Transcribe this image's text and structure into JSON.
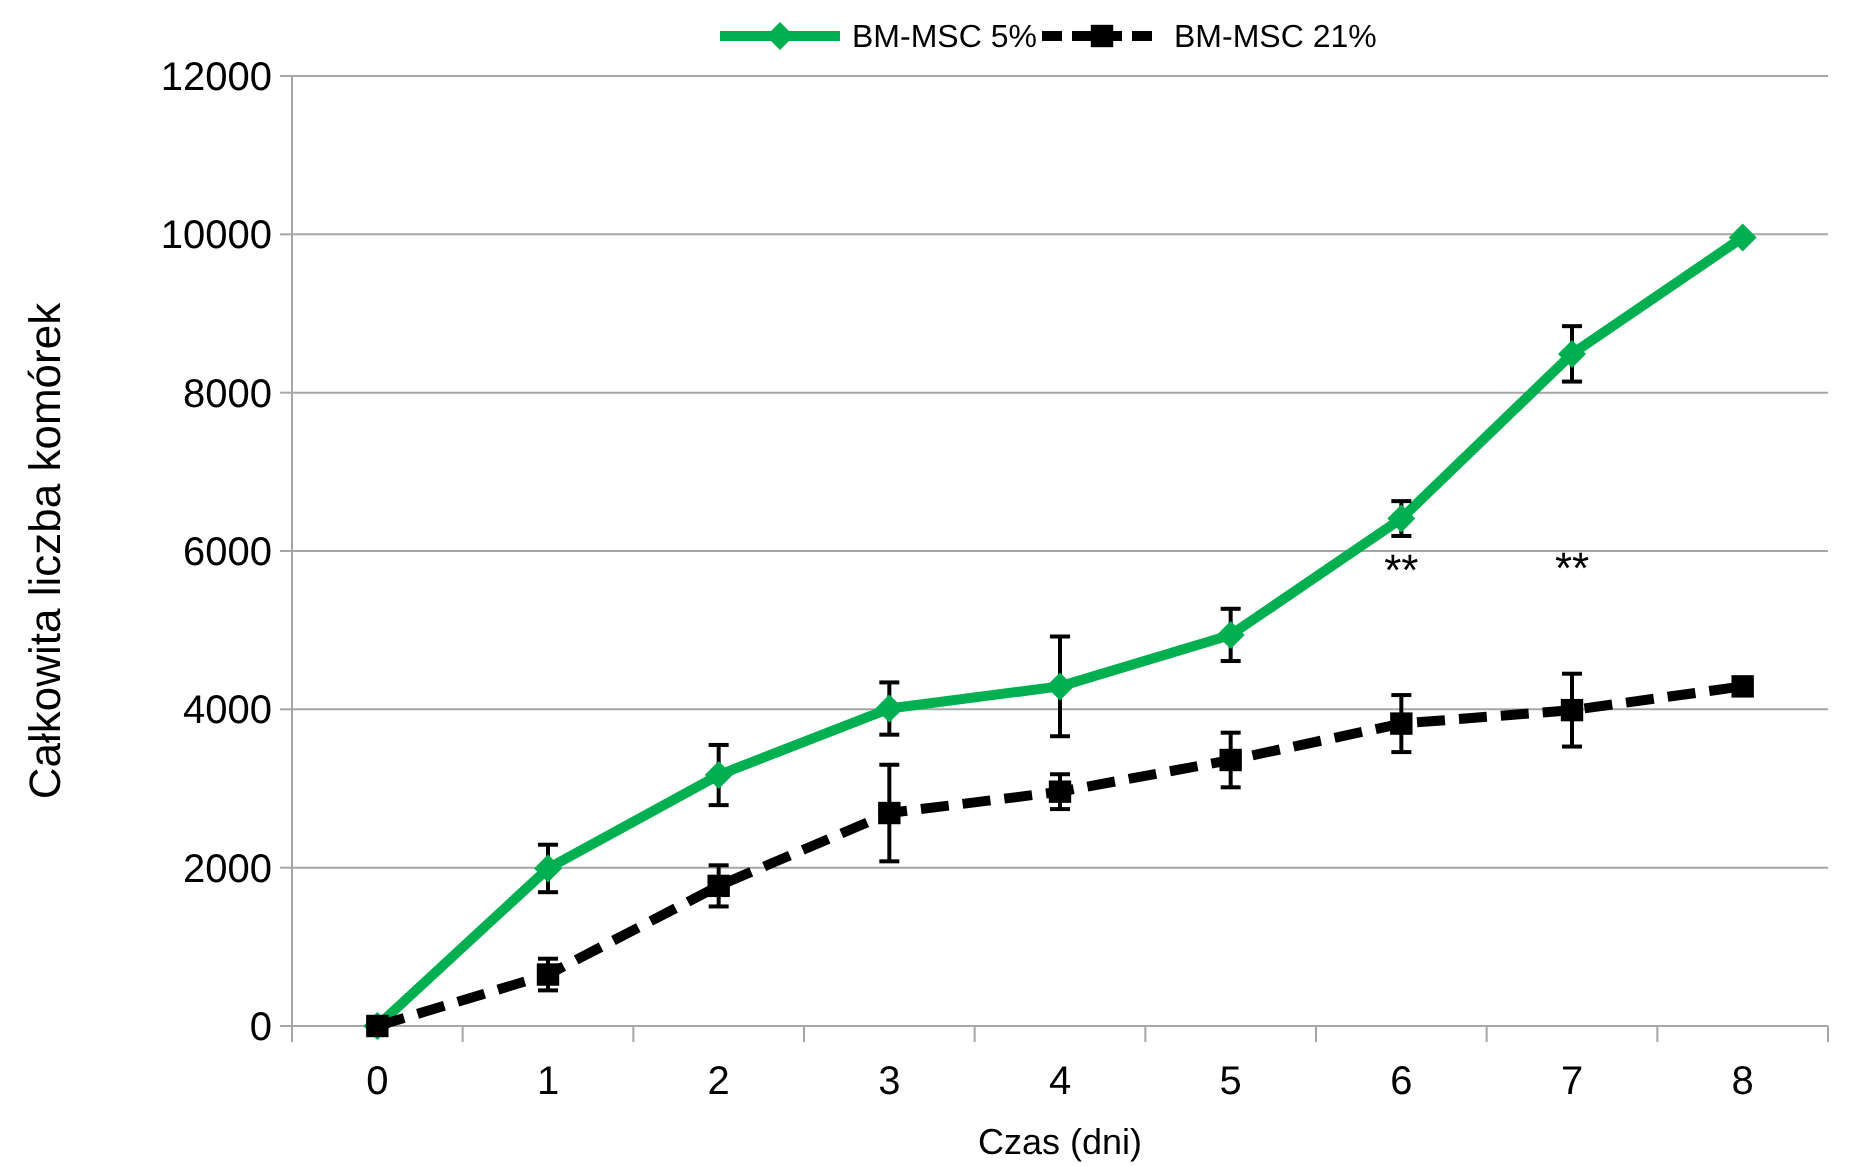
{
  "chart_data": {
    "type": "line",
    "xlabel": "Czas (dni)",
    "ylabel": "Całkowita liczba komórek",
    "categories": [
      "0",
      "1",
      "2",
      "3",
      "4",
      "5",
      "6",
      "7",
      "8"
    ],
    "series": [
      {
        "name": "BM-MSC 5%",
        "color": "#00b050",
        "marker": "diamond",
        "line_style": "solid",
        "values": [
          0,
          1990,
          3170,
          4010,
          4290,
          4940,
          6410,
          8490,
          9960
        ],
        "errors": [
          null,
          300,
          380,
          330,
          630,
          330,
          220,
          350,
          null
        ]
      },
      {
        "name": "BM-MSC 21%",
        "color": "#000000",
        "marker": "square",
        "line_style": "dashed",
        "values": [
          0,
          650,
          1770,
          2690,
          2960,
          3360,
          3820,
          3990,
          4290
        ],
        "errors": [
          null,
          200,
          260,
          610,
          220,
          345,
          360,
          460,
          null
        ]
      }
    ],
    "ylim": [
      0,
      12000
    ],
    "yticks": [
      0,
      2000,
      4000,
      6000,
      8000,
      10000,
      12000
    ],
    "grid": "y",
    "legend": "top",
    "annotations": [
      "**",
      "**"
    ]
  }
}
